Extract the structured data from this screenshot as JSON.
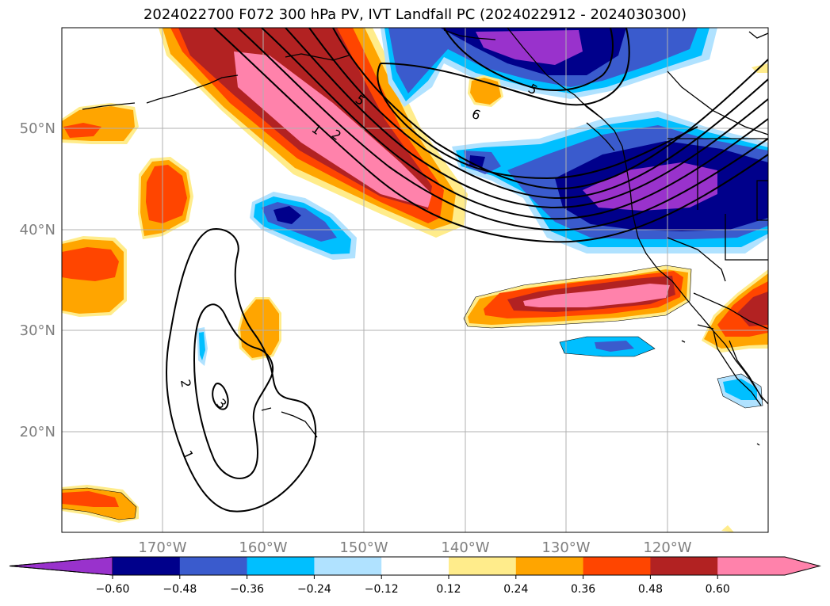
{
  "title": "2024022700 F072 300 hPa PV, IVT Landfall PC (2024022912 - 2024030300)",
  "map": {
    "lon_labels": [
      "170°W",
      "160°W",
      "150°W",
      "140°W",
      "130°W",
      "120°W"
    ],
    "lat_labels": [
      "50°N",
      "40°N",
      "30°N",
      "20°N"
    ]
  },
  "contour_labels": [
    "1",
    "2",
    "5",
    "5",
    "6",
    "1",
    "2",
    "3"
  ],
  "colorbar": {
    "ticks": [
      "−0.60",
      "−0.48",
      "−0.36",
      "−0.24",
      "−0.12",
      "0.12",
      "0.24",
      "0.36",
      "0.48",
      "0.60"
    ],
    "colors": [
      "#9932cc",
      "#00008b",
      "#3a5bcd",
      "#00bfff",
      "#b0e2ff",
      "#ffffff",
      "#ffec8b",
      "#ffa500",
      "#ff4500",
      "#b22222",
      "#ff82ab",
      "#ff82ab"
    ]
  }
}
